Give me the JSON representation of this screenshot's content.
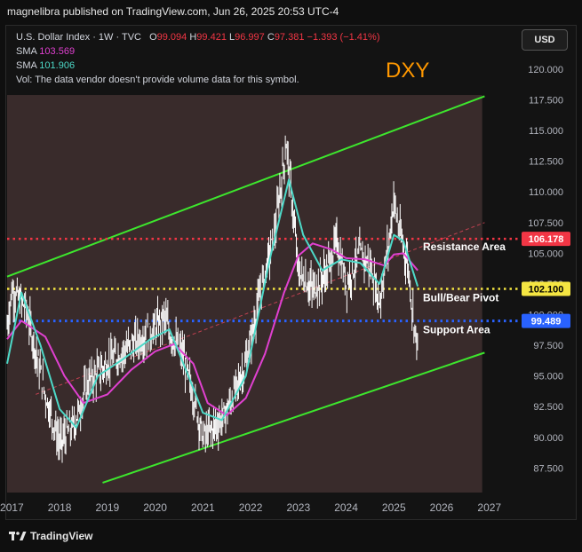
{
  "header": {
    "text": "magnelibra published on TradingView.com, Jun 26, 2025 20:53 UTC-4"
  },
  "legend": {
    "symbol": "U.S. Dollar Index · 1W · TVC",
    "open_label": "O",
    "open": "99.094",
    "high_label": "H",
    "high": "99.421",
    "low_label": "L",
    "low": "96.997",
    "close_label": "C",
    "close": "97.381",
    "change": "−1.393 (−1.41%)",
    "sma1_label": "SMA",
    "sma1_value": "103.569",
    "sma2_label": "SMA",
    "sma2_value": "101.906",
    "volume_note": "Vol: The data vendor doesn't provide volume data for this symbol."
  },
  "currency_button": "USD",
  "footer": {
    "brand": "TradingView"
  },
  "colors": {
    "channel": "#3de62d",
    "resistance": "#f23645",
    "pivot": "#f5e642",
    "support": "#2962ff",
    "sma1": "#e040d0",
    "sma2": "#4dd9c8",
    "title": "#ff9800",
    "candle": "#ffffff"
  },
  "chart_data": {
    "type": "candlestick",
    "title": "DXY",
    "x_tick_labels": [
      "2017",
      "2018",
      "2019",
      "2020",
      "2021",
      "2022",
      "2023",
      "2024",
      "2025",
      "2026",
      "2027"
    ],
    "y_tick_labels": [
      "87.500",
      "90.000",
      "92.500",
      "95.000",
      "97.500",
      "100.000",
      "102.500",
      "105.000",
      "107.500",
      "110.000",
      "112.500",
      "115.000",
      "117.500",
      "120.000"
    ],
    "ylim": [
      85.5,
      121.3
    ],
    "xlim": [
      2016.9,
      2027.6
    ],
    "levels": [
      {
        "name": "Resistance Area",
        "value": 106.178,
        "price_label": "106.178"
      },
      {
        "name": "Bull/Bear Pivot",
        "value": 102.1,
        "price_label": "102.100"
      },
      {
        "name": "Support Area",
        "value": 99.489,
        "price_label": "99.489"
      }
    ],
    "channel": {
      "upper": [
        [
          2016.9,
          103.1
        ],
        [
          2026.9,
          117.8
        ]
      ],
      "lower": [
        [
          2018.9,
          86.3
        ],
        [
          2026.9,
          96.9
        ]
      ]
    },
    "close_series": {
      "x": [
        2016.9,
        2017.0,
        2017.3,
        2017.7,
        2018.0,
        2018.3,
        2018.6,
        2019.0,
        2019.5,
        2019.9,
        2020.2,
        2020.3,
        2020.6,
        2020.9,
        2021.0,
        2021.4,
        2021.6,
        2021.9,
        2022.3,
        2022.5,
        2022.75,
        2022.85,
        2023.0,
        2023.3,
        2023.6,
        2023.8,
        2024.0,
        2024.3,
        2024.5,
        2024.7,
        2024.9,
        2025.0,
        2025.1,
        2025.3,
        2025.4,
        2025.5
      ],
      "y": [
        99.0,
        102.0,
        100.5,
        93.5,
        89.5,
        91.0,
        94.5,
        96.0,
        97.5,
        98.5,
        99.8,
        98.5,
        96.5,
        91.8,
        90.0,
        91.5,
        93.0,
        96.0,
        103.5,
        106.5,
        114.0,
        110.0,
        103.5,
        102.0,
        103.5,
        106.0,
        102.5,
        105.0,
        104.0,
        101.0,
        106.0,
        109.5,
        107.0,
        104.0,
        100.0,
        97.4
      ]
    },
    "series": [
      {
        "name": "SMA",
        "value": "103.569",
        "x": [
          2016.9,
          2017.2,
          2017.7,
          2018.1,
          2018.5,
          2019.0,
          2019.5,
          2020.0,
          2020.4,
          2020.8,
          2021.1,
          2021.5,
          2021.9,
          2022.3,
          2022.7,
          2023.0,
          2023.3,
          2023.7,
          2024.0,
          2024.4,
          2024.8,
          2025.0,
          2025.2,
          2025.5
        ],
        "y": [
          98.0,
          99.5,
          98.2,
          95.0,
          92.8,
          93.5,
          95.5,
          97.0,
          97.6,
          96.0,
          92.8,
          91.8,
          93.2,
          96.8,
          101.8,
          104.8,
          105.8,
          105.3,
          104.6,
          104.5,
          104.0,
          104.9,
          105.0,
          103.6
        ]
      },
      {
        "name": "SMA",
        "value": "101.906",
        "x": [
          2016.9,
          2017.2,
          2017.6,
          2018.0,
          2018.35,
          2018.8,
          2019.3,
          2019.9,
          2020.3,
          2020.8,
          2021.0,
          2021.4,
          2021.9,
          2022.4,
          2022.8,
          2023.1,
          2023.5,
          2023.9,
          2024.3,
          2024.7,
          2025.0,
          2025.2,
          2025.5
        ],
        "y": [
          96.0,
          101.8,
          97.5,
          92.3,
          90.8,
          95.0,
          96.3,
          98.0,
          98.8,
          94.0,
          92.0,
          91.4,
          95.0,
          104.5,
          111.0,
          106.5,
          103.6,
          104.5,
          104.2,
          102.5,
          106.5,
          106.0,
          102.3
        ]
      }
    ]
  }
}
